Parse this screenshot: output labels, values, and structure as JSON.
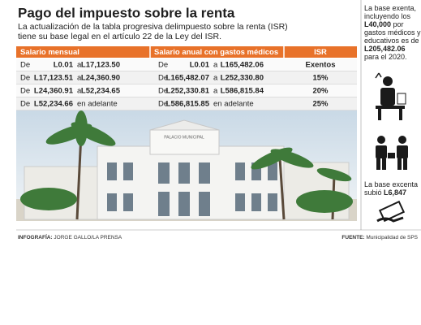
{
  "title": "Pago del impuesto sobre la renta",
  "subtitle": [
    "La actualización de la tabla progresiva delimpuesto sobre la renta (ISR)",
    "tiene su base legal en el artículo 22 de la Ley del ISR."
  ],
  "table": {
    "headers": [
      "Salario mensual",
      "Salario anual con gastos médicos",
      "ISR"
    ],
    "rows": [
      [
        "De",
        "L0.01",
        "a",
        "L17,123.50",
        "De",
        "L0.01",
        "a",
        "L165,482.06",
        "Exentos"
      ],
      [
        "De",
        "L17,123.51",
        "a",
        "L24,360.90",
        "De",
        "L165,482.07",
        "a",
        "L252,330.80",
        "15%"
      ],
      [
        "De",
        "L24,360.91",
        "a",
        "L52,234.65",
        "De",
        "L252,330.81",
        "a",
        "L586,815.84",
        "20%"
      ],
      [
        "De",
        "L52,234.66",
        "en adelante",
        "De",
        "L586,815.85",
        "en adelante",
        "25%"
      ]
    ]
  },
  "photo": {
    "sign": "PALACIO MUNICIPAL"
  },
  "sidebar": {
    "note1": [
      "La base exenta, incluyendo los ",
      "L40,000",
      " por gastos médicos y educativos es de ",
      "L205,482.06",
      " para el 2020."
    ],
    "note2": [
      "La base excenta subió ",
      "L6,847"
    ]
  },
  "footer": {
    "credit_label": "INFOGRAFÍA:",
    "credit": " JORGE GALLO/LA PRENSA",
    "source_label": "FUENTE:",
    "source": " Municipalidad de SPS"
  }
}
